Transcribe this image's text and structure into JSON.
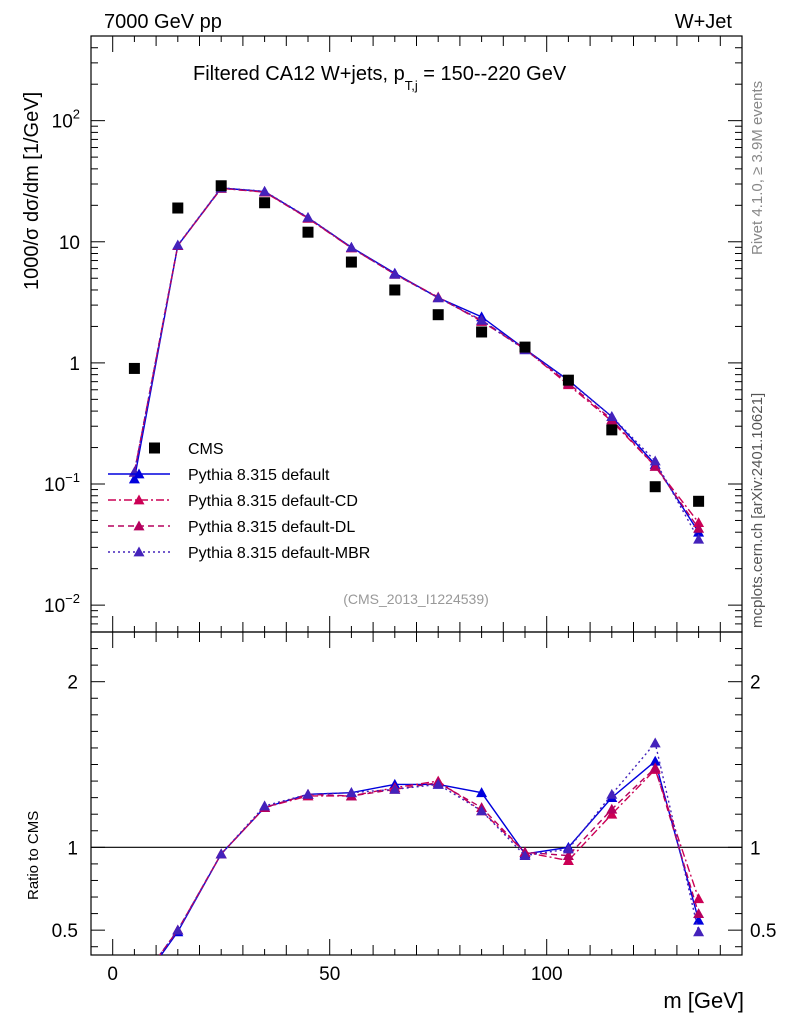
{
  "chart_data": {
    "type": "line",
    "header_left": "7000 GeV pp",
    "header_right": "W+Jet",
    "title": {
      "main": "Filtered CA12 W+jets, p",
      "sub": "T,j",
      "rest": " = 150--220 GeV"
    },
    "ylabel": "1000/σ  dσ/dm [1/GeV]",
    "ratio_ylabel": "Ratio to CMS",
    "xlabel": "m [GeV]",
    "side_label_top": "Rivet 4.1.0, ≥ 3.9M events",
    "side_label_bottom": "mcplots.cern.ch [arXiv:2401.10621]",
    "analysis_label": "(CMS_2013_I1224539)",
    "xlim": [
      -5,
      145
    ],
    "ylim_log": [
      0.006,
      500
    ],
    "ratio_ylim": [
      0.35,
      2.3
    ],
    "x_ticks": [
      0,
      50,
      100
    ],
    "y_ticks": [
      {
        "value": 0.01,
        "base": "10",
        "exp": "−2"
      },
      {
        "value": 0.1,
        "base": "10",
        "exp": "−1"
      },
      {
        "value": 1,
        "base": "1",
        "exp": ""
      },
      {
        "value": 10,
        "base": "10",
        "exp": ""
      },
      {
        "value": 100,
        "base": "10",
        "exp": "2"
      }
    ],
    "ratio_ticks": [
      {
        "value": 0.5,
        "label": "0.5"
      },
      {
        "value": 1,
        "label": "1"
      },
      {
        "value": 2,
        "label": "2"
      }
    ],
    "x": [
      5,
      15,
      25,
      35,
      45,
      55,
      65,
      75,
      85,
      95,
      105,
      115,
      125,
      135
    ],
    "data": {
      "name": "CMS",
      "color": "#000000",
      "values": [
        0.9,
        19,
        29,
        21,
        12,
        6.8,
        4.0,
        2.5,
        1.8,
        1.35,
        0.72,
        0.28,
        0.095,
        0.072
      ]
    },
    "series": [
      {
        "name": "Pythia 8.315 default",
        "color": "#0000dd",
        "dash": "",
        "ratio": [
          0.125,
          0.49,
          0.96,
          1.24,
          1.32,
          1.33,
          1.38,
          1.38,
          1.33,
          0.96,
          1.0,
          1.3,
          1.52,
          0.56
        ],
        "values": [
          0.11,
          9.3,
          27.8,
          26.0,
          15.8,
          9.0,
          5.5,
          3.45,
          2.4,
          1.3,
          0.72,
          0.36,
          0.145,
          0.04
        ]
      },
      {
        "name": "Pythia 8.315 default-CD",
        "color": "#cc0055",
        "dash": "8,3,2,3",
        "ratio": [
          0.14,
          0.5,
          0.96,
          1.24,
          1.31,
          1.31,
          1.36,
          1.4,
          1.22,
          0.97,
          0.92,
          1.2,
          1.47,
          0.69
        ],
        "values": [
          0.125,
          9.3,
          27.6,
          25.7,
          15.6,
          8.9,
          5.4,
          3.5,
          2.2,
          1.3,
          0.66,
          0.33,
          0.14,
          0.048
        ]
      },
      {
        "name": "Pythia 8.315 default-DL",
        "color": "#b5005e",
        "dash": "6,4",
        "ratio": [
          0.14,
          0.5,
          0.96,
          1.24,
          1.32,
          1.31,
          1.35,
          1.39,
          1.24,
          0.97,
          0.95,
          1.23,
          1.48,
          0.6
        ],
        "values": [
          0.125,
          9.3,
          27.6,
          25.8,
          15.7,
          8.9,
          5.4,
          3.45,
          2.25,
          1.3,
          0.68,
          0.34,
          0.14,
          0.043
        ]
      },
      {
        "name": "Pythia 8.315 default-MBR",
        "color": "#4422bb",
        "dash": "2,3",
        "ratio": [
          0.14,
          0.5,
          0.96,
          1.25,
          1.32,
          1.33,
          1.35,
          1.38,
          1.22,
          0.95,
          0.99,
          1.32,
          1.63,
          0.49
        ],
        "values": [
          0.125,
          9.4,
          27.9,
          26.1,
          15.9,
          9.0,
          5.4,
          3.45,
          2.25,
          1.28,
          0.71,
          0.36,
          0.155,
          0.035
        ]
      }
    ]
  }
}
